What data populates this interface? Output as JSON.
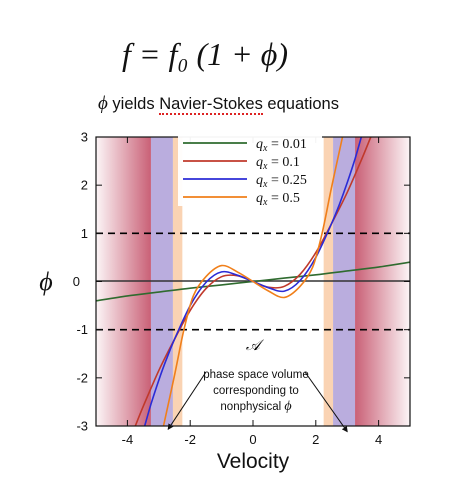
{
  "header": {
    "formula": "f = f₀ (1 + ϕ)",
    "subtitle_symbol": "ϕ",
    "subtitle_pre": " yields ",
    "subtitle_highlight": "Navier-Stokes",
    "subtitle_post": " equations"
  },
  "chart_data": {
    "type": "line",
    "xlabel": "Velocity",
    "ylabel": "ϕ",
    "xlim": [
      -5,
      5
    ],
    "ylim": [
      -3,
      3
    ],
    "x_ticks": [
      -4,
      -2,
      0,
      2,
      4
    ],
    "y_ticks": [
      -3,
      -2,
      -1,
      0,
      1,
      2,
      3
    ],
    "grid": false,
    "legend_placement": "top-center",
    "reference_lines": [
      {
        "y": 1,
        "style": "dashed",
        "color": "#000000"
      },
      {
        "y": -1,
        "style": "dashed",
        "color": "#000000"
      }
    ],
    "series": [
      {
        "name": "qx = 0.01",
        "color": "#2f6b2f",
        "x": [
          -5,
          -4,
          -3,
          -2,
          -1,
          0,
          1,
          2,
          3,
          4,
          5
        ],
        "y": [
          -0.4,
          -0.3,
          -0.22,
          -0.14,
          -0.07,
          0,
          0.07,
          0.14,
          0.22,
          0.3,
          0.4
        ]
      },
      {
        "name": "qx = 0.1",
        "color": "#c0392b",
        "x": [
          -3.75,
          -3.5,
          -3,
          -2.5,
          -2,
          -1.5,
          -1,
          -0.5,
          0,
          0.5,
          1,
          1.5,
          2,
          2.5,
          3,
          3.5,
          3.75
        ],
        "y": [
          -3.0,
          -2.6,
          -1.85,
          -1.2,
          -0.6,
          -0.15,
          0.1,
          0.12,
          0.0,
          -0.12,
          -0.1,
          0.15,
          0.6,
          1.2,
          1.85,
          2.6,
          3.0
        ]
      },
      {
        "name": "qx = 0.25",
        "color": "#2b2bd6",
        "x": [
          -3.45,
          -3.25,
          -3,
          -2.75,
          -2.5,
          -2,
          -1.5,
          -1,
          -0.5,
          0,
          0.5,
          1,
          1.5,
          2,
          2.5,
          2.75,
          3,
          3.25,
          3.45
        ],
        "y": [
          -3.0,
          -2.55,
          -2.05,
          -1.6,
          -1.2,
          -0.5,
          -0.02,
          0.2,
          0.13,
          0.0,
          -0.13,
          -0.2,
          0.02,
          0.5,
          1.2,
          1.6,
          2.05,
          2.55,
          3.0
        ]
      },
      {
        "name": "qx = 0.5",
        "color": "#f07f1a",
        "x": [
          -2.85,
          -2.5,
          -2.2,
          -1.9,
          -1.5,
          -1,
          -0.5,
          0,
          0.5,
          1,
          1.5,
          1.9,
          2.2,
          2.5,
          2.85
        ],
        "y": [
          -3.0,
          -1.95,
          -1.0,
          -0.3,
          0.1,
          0.33,
          0.2,
          0.0,
          -0.2,
          -0.33,
          -0.1,
          0.3,
          1.0,
          1.95,
          3.0
        ]
      }
    ],
    "legend_labels": [
      {
        "var": "q",
        "sub": "x",
        "value": " = 0.01"
      },
      {
        "var": "q",
        "sub": "x",
        "value": " = 0.1"
      },
      {
        "var": "q",
        "sub": "x",
        "value": " = 0.25"
      },
      {
        "var": "q",
        "sub": "x",
        "value": " = 0.5"
      }
    ],
    "shaded_regions": [
      {
        "x": [
          -5,
          -3.25
        ],
        "color": "#c0445e",
        "style": "gradient-in"
      },
      {
        "x": [
          -3.25,
          -2.55
        ],
        "color": "#a998d6"
      },
      {
        "x": [
          -2.55,
          -2.25
        ],
        "color": "#f9c8a0"
      },
      {
        "x": [
          2.25,
          2.55
        ],
        "color": "#f9c8a0"
      },
      {
        "x": [
          2.55,
          3.25
        ],
        "color": "#a998d6"
      },
      {
        "x": [
          3.25,
          5
        ],
        "color": "#c0445e",
        "style": "gradient-out"
      }
    ],
    "annotation": {
      "symbol": "𝒜",
      "lines": [
        "phase space volume",
        "corresponding to",
        "nonphysical ϕ"
      ],
      "italic_last_word": "ϕ",
      "arrow_targets": [
        {
          "x": -2.7,
          "y": -2.9
        },
        {
          "x": 3.0,
          "y": -2.95
        }
      ]
    }
  }
}
